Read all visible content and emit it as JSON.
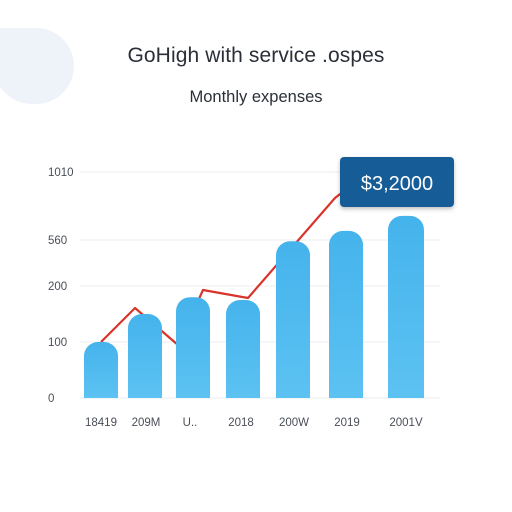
{
  "header": {
    "title": "GoHigh with service .ospes",
    "subtitle": "Monthly expenses"
  },
  "chart_data": {
    "type": "bar",
    "categories": [
      "18419",
      "209M",
      "U..",
      "2018",
      "200W",
      "2019",
      "2001V"
    ],
    "series": [
      {
        "values": [
          100,
          150,
          180,
          175,
          550,
          620,
          720
        ],
        "color": "#4bb8ee"
      }
    ],
    "trend_line": {
      "values": [
        100,
        160,
        60,
        190,
        160,
        700,
        1010
      ],
      "color": "#d9342b"
    },
    "y_ticks": [
      "0",
      "100",
      "200",
      "560",
      "1010"
    ],
    "callout": {
      "text": "$3,2000",
      "color": "#125b96"
    },
    "grid": true
  }
}
